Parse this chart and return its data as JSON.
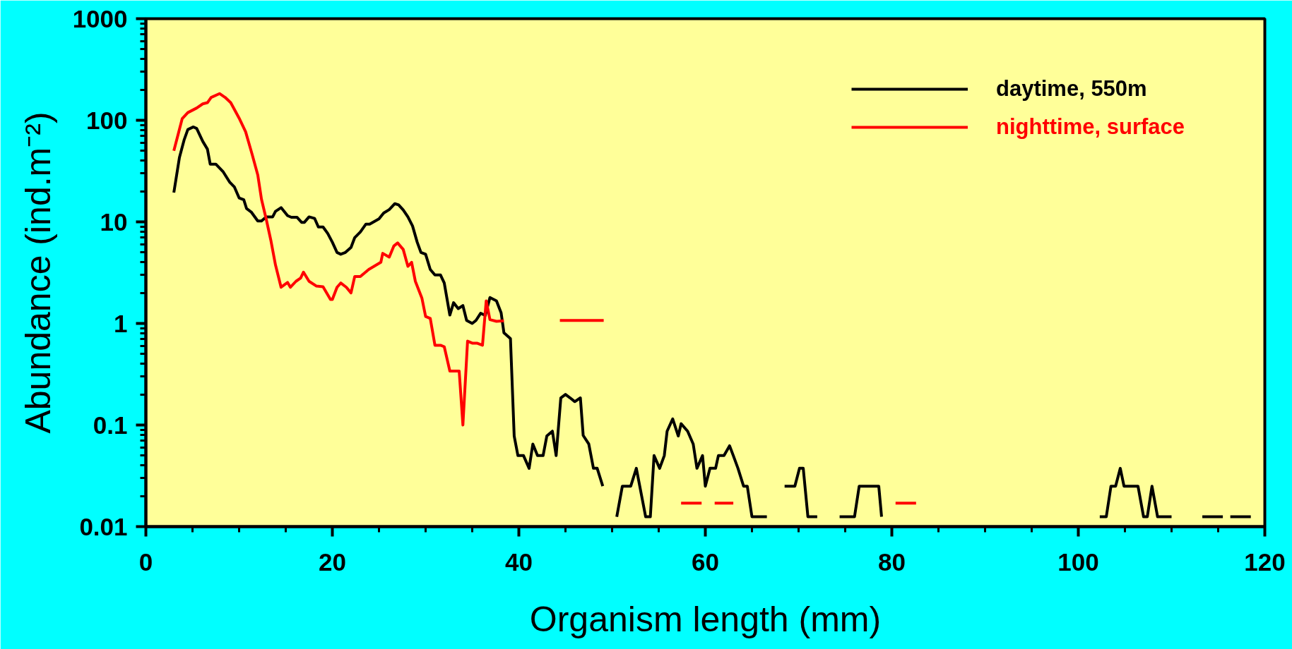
{
  "chart_data": {
    "type": "line",
    "xlabel": "Organism length (mm)",
    "ylabel": "Abundance (ind.m⁻²)",
    "log": "y",
    "legend": "top right",
    "xlim": [
      0,
      120
    ],
    "ylim": [
      0.01,
      1000
    ],
    "xticks": [
      0,
      {
        "value": 5,
        "label": null
      },
      {
        "value": 10,
        "label": null
      },
      {
        "value": 15,
        "label": null
      },
      20,
      {
        "value": 25,
        "label": null
      },
      {
        "value": 30,
        "label": null
      },
      {
        "value": 35,
        "label": null
      },
      40,
      {
        "value": 45,
        "label": null
      },
      {
        "value": 50,
        "label": null
      },
      {
        "value": 55,
        "label": null
      },
      60,
      {
        "value": 65,
        "label": null
      },
      {
        "value": 70,
        "label": null
      },
      {
        "value": 75,
        "label": null
      },
      80,
      {
        "value": 85,
        "label": null
      },
      {
        "value": 90,
        "label": null
      },
      {
        "value": 95,
        "label": null
      },
      100,
      {
        "value": 105,
        "label": null
      },
      {
        "value": 110,
        "label": null
      },
      {
        "value": 115,
        "label": null
      },
      120
    ],
    "yticks": [
      0.01,
      {
        "value": 0.02,
        "label": null
      },
      {
        "value": 0.03,
        "label": null
      },
      {
        "value": 0.04,
        "label": null
      },
      {
        "value": 0.05,
        "label": null
      },
      {
        "value": 0.06,
        "label": null
      },
      {
        "value": 0.07,
        "label": null
      },
      {
        "value": 0.08,
        "label": null
      },
      {
        "value": 0.09,
        "label": null
      },
      0.1,
      {
        "value": 0.2,
        "label": null
      },
      {
        "value": 0.3,
        "label": null
      },
      {
        "value": 0.4,
        "label": null
      },
      {
        "value": 0.5,
        "label": null
      },
      {
        "value": 0.6,
        "label": null
      },
      {
        "value": 0.7,
        "label": null
      },
      {
        "value": 0.8,
        "label": null
      },
      {
        "value": 0.9,
        "label": null
      },
      1,
      {
        "value": 2,
        "label": null
      },
      {
        "value": 3,
        "label": null
      },
      {
        "value": 4,
        "label": null
      },
      {
        "value": 5,
        "label": null
      },
      {
        "value": 6,
        "label": null
      },
      {
        "value": 7,
        "label": null
      },
      {
        "value": 8,
        "label": null
      },
      {
        "value": 9,
        "label": null
      },
      10,
      {
        "value": 20,
        "label": null
      },
      {
        "value": 30,
        "label": null
      },
      {
        "value": 40,
        "label": null
      },
      {
        "value": 50,
        "label": null
      },
      {
        "value": 60,
        "label": null
      },
      {
        "value": 70,
        "label": null
      },
      {
        "value": 80,
        "label": null
      },
      {
        "value": 90,
        "label": null
      },
      100,
      {
        "value": 200,
        "label": null
      },
      {
        "value": 300,
        "label": null
      },
      {
        "value": 400,
        "label": null
      },
      {
        "value": 500,
        "label": null
      },
      {
        "value": 600,
        "label": null
      },
      {
        "value": 700,
        "label": null
      },
      {
        "value": 800,
        "label": null
      },
      {
        "value": 900,
        "label": null
      },
      1000
    ],
    "series": [
      {
        "name": "daytime, 550m",
        "color": "#000000",
        "x": [
          3.0,
          3.6,
          4.1,
          4.5,
          5.1,
          5.45,
          6.1,
          6.6,
          6.9,
          7.5,
          8.3,
          9.0,
          9.5,
          10.0,
          10.5,
          10.8,
          11.3,
          12.0,
          12.4,
          12.9,
          13.6,
          13.9,
          14.5,
          15.2,
          15.6,
          16.2,
          16.7,
          17.0,
          17.5,
          18.1,
          18.5,
          19.0,
          19.5,
          20.0,
          20.5,
          20.9,
          21.4,
          22.0,
          22.4,
          23.0,
          23.6,
          24.0,
          25.0,
          25.5,
          26.1,
          26.7,
          27.1,
          27.6,
          28.1,
          28.6,
          29.1,
          29.5,
          30.0,
          30.5,
          31.0,
          31.6,
          32.0,
          32.6,
          33.0,
          33.5,
          34.0,
          34.4,
          35.0,
          35.4,
          35.9,
          36.4,
          36.9,
          37.6,
          38.1,
          38.4,
          39.1,
          39.5,
          39.9,
          40.5,
          41.1,
          41.5,
          42.0,
          42.6,
          43.0,
          43.6,
          44.0,
          44.5,
          45.0,
          45.5,
          46.0,
          46.6,
          46.9,
          47.5,
          48.0,
          48.4,
          49.0,
          49.7,
          50.5,
          51.1,
          52.0,
          52.6,
          53.6,
          54.1,
          54.5,
          55.1,
          55.6,
          55.9,
          56.5,
          57.1,
          57.4,
          58.1,
          58.7,
          59.1,
          59.7,
          60.0,
          60.5,
          61.1,
          61.4,
          62.0,
          62.6,
          63.0,
          63.5,
          64.1,
          64.5,
          65.0,
          66.6,
          67.5,
          68.5,
          69.6,
          70.1,
          70.5,
          71.0,
          72.0,
          73.2,
          74.4,
          76.0,
          76.5,
          78.6,
          78.9,
          90.0,
          102.3,
          103.0,
          103.5,
          104.0,
          104.5,
          104.9,
          106.4,
          107.0,
          107.4,
          107.9,
          108.5,
          110.0,
          111.6,
          113.3,
          115.5,
          115.9,
          116.3,
          118.5
        ],
        "values": [
          19.4,
          43,
          64,
          81,
          86,
          83,
          62,
          52,
          37,
          37,
          31,
          24.5,
          22,
          17.2,
          16.5,
          13.5,
          12.5,
          10.2,
          10.2,
          11.2,
          11.2,
          12.7,
          13.8,
          11.5,
          11.1,
          11.1,
          9.9,
          9.9,
          11.2,
          10.8,
          8.9,
          8.9,
          7.7,
          6.3,
          5.0,
          4.8,
          5.0,
          5.6,
          7.0,
          7.95,
          9.5,
          9.5,
          10.7,
          12.2,
          13.2,
          15.1,
          14.7,
          13.1,
          11.2,
          9.1,
          6.3,
          5.0,
          4.8,
          3.4,
          3.0,
          3.0,
          2.5,
          1.21,
          1.6,
          1.4,
          1.5,
          1.07,
          1.0,
          1.07,
          1.26,
          1.2,
          1.8,
          1.67,
          1.27,
          0.81,
          0.71,
          0.078,
          0.05,
          0.05,
          0.0375,
          0.065,
          0.05,
          0.05,
          0.078,
          0.087,
          0.05,
          0.185,
          0.2,
          0.185,
          0.17,
          0.185,
          0.079,
          0.065,
          0.0375,
          0.0375,
          0.025,
          null,
          0.0125,
          0.025,
          0.025,
          0.0375,
          0.0125,
          0.0125,
          0.05,
          0.0375,
          0.05,
          0.087,
          0.115,
          0.078,
          0.103,
          0.087,
          0.065,
          0.0375,
          0.05,
          0.025,
          0.0375,
          0.0375,
          0.05,
          0.05,
          0.0625,
          0.05,
          0.0375,
          0.025,
          0.025,
          0.0125,
          0.0125,
          null,
          0.025,
          0.025,
          0.0375,
          0.0375,
          0.0125,
          0.0125,
          null,
          0.0125,
          0.0125,
          0.025,
          0.025,
          0.0125,
          null,
          0.0125,
          0.0125,
          0.025,
          0.025,
          0.0375,
          0.025,
          0.025,
          0.0125,
          0.0125,
          0.025,
          0.0125,
          0.0125,
          null,
          0.0125,
          0.0125,
          null,
          0.0125,
          0.0125
        ]
      },
      {
        "name": "nighttime, surface",
        "color": "#ff0000",
        "x": [
          3.0,
          3.9,
          4.5,
          5.45,
          6.1,
          6.6,
          7.0,
          7.9,
          8.5,
          9.1,
          10.0,
          10.7,
          11.4,
          12.0,
          12.4,
          12.9,
          13.4,
          13.9,
          14.5,
          15.2,
          15.5,
          16.1,
          16.6,
          16.9,
          17.5,
          18.3,
          19.0,
          19.8,
          20.0,
          20.5,
          20.9,
          21.5,
          22.0,
          22.4,
          23.0,
          23.9,
          25.2,
          25.4,
          26.1,
          26.6,
          27.0,
          27.6,
          28.1,
          28.5,
          28.9,
          29.6,
          30.0,
          30.5,
          31.0,
          31.6,
          32.0,
          32.6,
          33.6,
          34.0,
          34.5,
          35.0,
          35.5,
          36.1,
          36.5,
          36.9,
          37.6,
          38.4,
          41.4,
          44.4,
          49.1,
          53.2,
          57.4,
          59.6,
          60.3,
          61.0,
          63.0,
          71.7,
          80.4,
          82.6
        ],
        "values": [
          50,
          104,
          119,
          132,
          145,
          149,
          168,
          183,
          168,
          149,
          105,
          77,
          46,
          29,
          16.7,
          10.7,
          6.6,
          3.77,
          2.27,
          2.53,
          2.27,
          2.6,
          2.8,
          3.2,
          2.6,
          2.33,
          2.3,
          1.72,
          1.72,
          2.27,
          2.5,
          2.27,
          2.0,
          2.9,
          2.9,
          3.4,
          4.0,
          4.9,
          4.5,
          5.8,
          6.2,
          5.35,
          3.65,
          4.0,
          2.6,
          1.78,
          1.17,
          1.12,
          0.61,
          0.61,
          0.59,
          0.34,
          0.34,
          0.1,
          0.67,
          0.64,
          0.64,
          0.61,
          1.67,
          1.09,
          1.05,
          1.06,
          null,
          1.07,
          1.07,
          null,
          0.017,
          0.017,
          null,
          0.017,
          0.017,
          null,
          0.017,
          0.017
        ]
      }
    ]
  }
}
